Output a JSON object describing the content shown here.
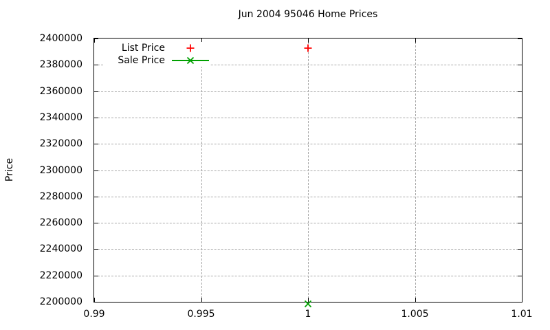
{
  "chart_data": {
    "type": "scatter",
    "title": "Jun 2004 95046 Home Prices",
    "xlabel": "",
    "ylabel": "Price",
    "xlim": [
      0.99,
      1.01
    ],
    "ylim": [
      2200000,
      2400000
    ],
    "x_ticks": [
      0.99,
      0.995,
      1,
      1.005,
      1.01
    ],
    "x_tick_labels": [
      "0.99",
      "0.995",
      "1",
      "1.005",
      "1.01"
    ],
    "y_ticks": [
      2200000,
      2220000,
      2240000,
      2260000,
      2280000,
      2300000,
      2320000,
      2340000,
      2360000,
      2380000,
      2400000
    ],
    "y_tick_labels": [
      "2200000",
      "2220000",
      "2240000",
      "2260000",
      "2280000",
      "2300000",
      "2320000",
      "2340000",
      "2360000",
      "2380000",
      "2400000"
    ],
    "grid": true,
    "grid_color": "#a6a6a6",
    "border_color": "#000000",
    "text_color": "#000000",
    "legend_position": "top-left-inside",
    "series": [
      {
        "name": "List Price",
        "style": "points",
        "marker": "plus",
        "color": "#ff0000",
        "points": [
          {
            "x": 1,
            "y": 2394500
          }
        ]
      },
      {
        "name": "Sale Price",
        "style": "linespoints",
        "marker": "cross",
        "color": "#00a000",
        "points": [
          {
            "x": 1,
            "y": 2200000
          }
        ]
      }
    ]
  }
}
